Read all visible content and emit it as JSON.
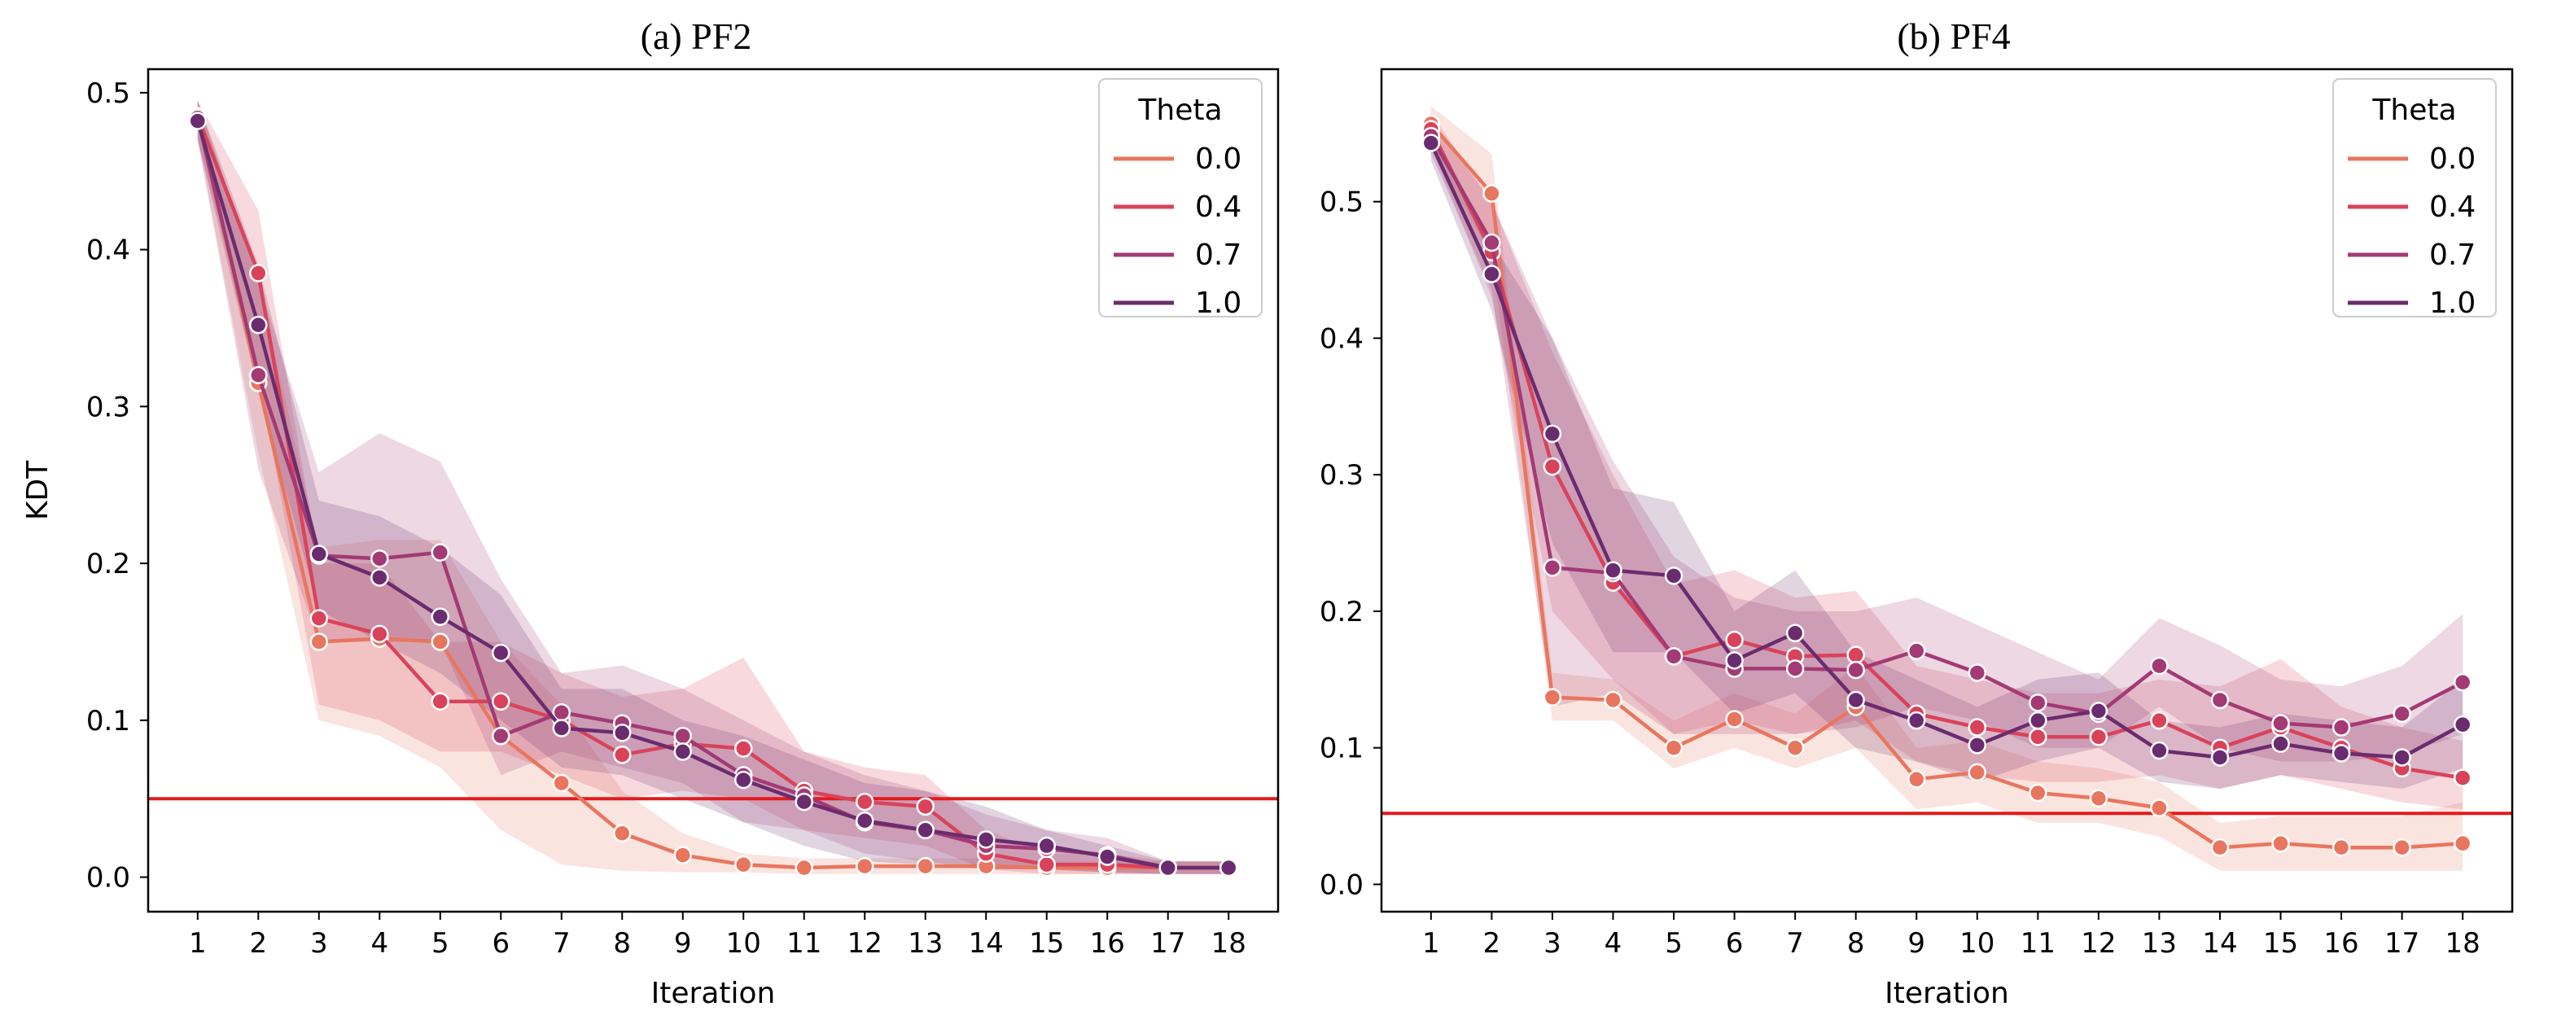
{
  "chart_data": [
    {
      "type": "line",
      "title": "(a) PF2",
      "xlabel": "Iteration",
      "ylabel": "KDT",
      "x": [
        1,
        2,
        3,
        4,
        5,
        6,
        7,
        8,
        9,
        10,
        11,
        12,
        13,
        14,
        15,
        16,
        17,
        18
      ],
      "ylim": [
        -0.022,
        0.515
      ],
      "yticks": [
        "0.0",
        "0.1",
        "0.2",
        "0.3",
        "0.4",
        "0.5"
      ],
      "ytick_values": [
        0.0,
        0.1,
        0.2,
        0.3,
        0.4,
        0.5
      ],
      "threshold": {
        "value": 0.05,
        "color": "#e31a1c"
      },
      "legend": {
        "title": "Theta",
        "placement": "top-right"
      },
      "series": [
        {
          "name": "0.0",
          "color": "#e8765e",
          "values": [
            0.485,
            0.315,
            0.15,
            0.152,
            0.15,
            0.09,
            0.06,
            0.028,
            0.014,
            0.008,
            0.006,
            0.007,
            0.007,
            0.007,
            0.006,
            0.006,
            0.006,
            0.006
          ],
          "lower": [
            0.47,
            0.27,
            0.1,
            0.09,
            0.07,
            0.03,
            0.008,
            0.004,
            0.003,
            0.003,
            0.002,
            0.002,
            0.002,
            0.002,
            0.002,
            0.002,
            0.002,
            0.002
          ],
          "upper": [
            0.495,
            0.38,
            0.21,
            0.215,
            0.215,
            0.15,
            0.11,
            0.055,
            0.028,
            0.015,
            0.012,
            0.012,
            0.012,
            0.012,
            0.01,
            0.01,
            0.01,
            0.01
          ]
        },
        {
          "name": "0.4",
          "color": "#d9435a",
          "values": [
            0.485,
            0.385,
            0.165,
            0.155,
            0.112,
            0.112,
            0.1,
            0.078,
            0.085,
            0.082,
            0.055,
            0.048,
            0.045,
            0.015,
            0.008,
            0.008,
            0.006,
            0.006
          ],
          "lower": [
            0.47,
            0.32,
            0.11,
            0.1,
            0.08,
            0.08,
            0.065,
            0.05,
            0.055,
            0.05,
            0.03,
            0.025,
            0.02,
            0.005,
            0.002,
            0.002,
            0.002,
            0.002
          ],
          "upper": [
            0.495,
            0.425,
            0.2,
            0.2,
            0.15,
            0.15,
            0.13,
            0.115,
            0.12,
            0.14,
            0.08,
            0.07,
            0.065,
            0.03,
            0.015,
            0.015,
            0.01,
            0.01
          ]
        },
        {
          "name": "0.7",
          "color": "#a33a73",
          "values": [
            0.484,
            0.32,
            0.205,
            0.203,
            0.207,
            0.09,
            0.105,
            0.098,
            0.09,
            0.065,
            0.052,
            0.035,
            0.03,
            0.02,
            0.018,
            0.014,
            0.006,
            0.006
          ],
          "lower": [
            0.47,
            0.26,
            0.15,
            0.15,
            0.15,
            0.065,
            0.08,
            0.07,
            0.06,
            0.035,
            0.03,
            0.015,
            0.01,
            0.005,
            0.005,
            0.003,
            0.002,
            0.002
          ],
          "upper": [
            0.495,
            0.38,
            0.258,
            0.283,
            0.265,
            0.19,
            0.13,
            0.135,
            0.12,
            0.1,
            0.08,
            0.065,
            0.055,
            0.04,
            0.03,
            0.025,
            0.01,
            0.01
          ]
        },
        {
          "name": "1.0",
          "color": "#6a2c6e",
          "values": [
            0.482,
            0.352,
            0.206,
            0.191,
            0.166,
            0.143,
            0.095,
            0.092,
            0.08,
            0.062,
            0.048,
            0.036,
            0.03,
            0.024,
            0.02,
            0.013,
            0.006,
            0.006
          ],
          "lower": [
            0.47,
            0.31,
            0.17,
            0.15,
            0.13,
            0.1,
            0.07,
            0.065,
            0.05,
            0.035,
            0.02,
            0.01,
            0.008,
            0.005,
            0.005,
            0.003,
            0.002,
            0.002
          ],
          "upper": [
            0.495,
            0.39,
            0.24,
            0.23,
            0.21,
            0.18,
            0.12,
            0.12,
            0.1,
            0.09,
            0.075,
            0.06,
            0.055,
            0.045,
            0.03,
            0.02,
            0.01,
            0.01
          ]
        }
      ]
    },
    {
      "type": "line",
      "title": "(b) PF4",
      "xlabel": "Iteration",
      "ylabel": "",
      "x": [
        1,
        2,
        3,
        4,
        5,
        6,
        7,
        8,
        9,
        10,
        11,
        12,
        13,
        14,
        15,
        16,
        17,
        18
      ],
      "ylim": [
        -0.02,
        0.597
      ],
      "yticks": [
        "0.0",
        "0.1",
        "0.2",
        "0.3",
        "0.4",
        "0.5"
      ],
      "ytick_values": [
        0.0,
        0.1,
        0.2,
        0.3,
        0.4,
        0.5
      ],
      "threshold": {
        "value": 0.052,
        "color": "#e31a1c"
      },
      "legend": {
        "title": "Theta",
        "placement": "top-right"
      },
      "series": [
        {
          "name": "0.0",
          "color": "#e8765e",
          "values": [
            0.557,
            0.506,
            0.137,
            0.135,
            0.1,
            0.121,
            0.1,
            0.13,
            0.077,
            0.082,
            0.067,
            0.063,
            0.056,
            0.027,
            0.03,
            0.027,
            0.027,
            0.03
          ],
          "lower": [
            0.54,
            0.46,
            0.12,
            0.12,
            0.085,
            0.1,
            0.085,
            0.1,
            0.055,
            0.06,
            0.045,
            0.045,
            0.035,
            0.01,
            0.01,
            0.01,
            0.01,
            0.01
          ],
          "upper": [
            0.57,
            0.535,
            0.155,
            0.15,
            0.12,
            0.14,
            0.125,
            0.16,
            0.1,
            0.105,
            0.09,
            0.085,
            0.075,
            0.045,
            0.05,
            0.05,
            0.05,
            0.06
          ]
        },
        {
          "name": "0.4",
          "color": "#d9435a",
          "values": [
            0.553,
            0.463,
            0.306,
            0.221,
            0.167,
            0.179,
            0.167,
            0.168,
            0.125,
            0.115,
            0.108,
            0.108,
            0.12,
            0.1,
            0.115,
            0.1,
            0.085,
            0.078
          ],
          "lower": [
            0.54,
            0.43,
            0.2,
            0.15,
            0.11,
            0.12,
            0.11,
            0.12,
            0.09,
            0.08,
            0.075,
            0.075,
            0.08,
            0.07,
            0.08,
            0.07,
            0.06,
            0.055
          ],
          "upper": [
            0.565,
            0.5,
            0.39,
            0.3,
            0.22,
            0.23,
            0.21,
            0.215,
            0.16,
            0.15,
            0.14,
            0.14,
            0.15,
            0.145,
            0.165,
            0.13,
            0.115,
            0.105
          ]
        },
        {
          "name": "0.7",
          "color": "#a33a73",
          "values": [
            0.548,
            0.47,
            0.232,
            0.228,
            0.167,
            0.158,
            0.158,
            0.157,
            0.171,
            0.155,
            0.133,
            0.125,
            0.16,
            0.135,
            0.118,
            0.115,
            0.125,
            0.148
          ],
          "lower": [
            0.535,
            0.435,
            0.13,
            0.14,
            0.11,
            0.11,
            0.11,
            0.115,
            0.13,
            0.12,
            0.1,
            0.1,
            0.13,
            0.1,
            0.09,
            0.09,
            0.095,
            0.11
          ],
          "upper": [
            0.56,
            0.5,
            0.4,
            0.31,
            0.24,
            0.21,
            0.2,
            0.2,
            0.21,
            0.19,
            0.17,
            0.15,
            0.195,
            0.175,
            0.15,
            0.145,
            0.16,
            0.198
          ]
        },
        {
          "name": "1.0",
          "color": "#6a2c6e",
          "values": [
            0.543,
            0.447,
            0.33,
            0.23,
            0.226,
            0.164,
            0.184,
            0.135,
            0.12,
            0.102,
            0.12,
            0.127,
            0.098,
            0.093,
            0.103,
            0.096,
            0.093,
            0.117
          ],
          "lower": [
            0.53,
            0.42,
            0.25,
            0.17,
            0.17,
            0.125,
            0.14,
            0.1,
            0.09,
            0.075,
            0.09,
            0.1,
            0.075,
            0.07,
            0.08,
            0.075,
            0.07,
            0.085
          ],
          "upper": [
            0.555,
            0.47,
            0.4,
            0.29,
            0.28,
            0.2,
            0.23,
            0.17,
            0.15,
            0.13,
            0.15,
            0.155,
            0.12,
            0.115,
            0.125,
            0.12,
            0.115,
            0.15
          ]
        }
      ]
    }
  ]
}
